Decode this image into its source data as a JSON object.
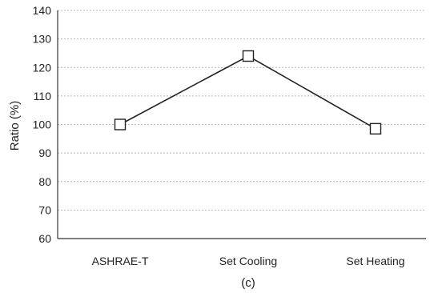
{
  "chart_data": {
    "type": "line",
    "title": "",
    "xlabel": "",
    "ylabel": "Ratio (%)",
    "caption": "(c)",
    "categories": [
      "ASHRAE-T",
      "Set Cooling",
      "Set Heating"
    ],
    "series": [
      {
        "values": [
          100,
          124,
          98.5
        ]
      }
    ],
    "ylim": [
      60,
      140
    ],
    "yticks": [
      60,
      70,
      80,
      90,
      100,
      110,
      120,
      130,
      140
    ],
    "grid": true,
    "legend": "none",
    "colors": {
      "line": "#222222",
      "marker_fill": "#ffffff",
      "grid": "#b8b8b8",
      "axis": "#333333"
    }
  }
}
